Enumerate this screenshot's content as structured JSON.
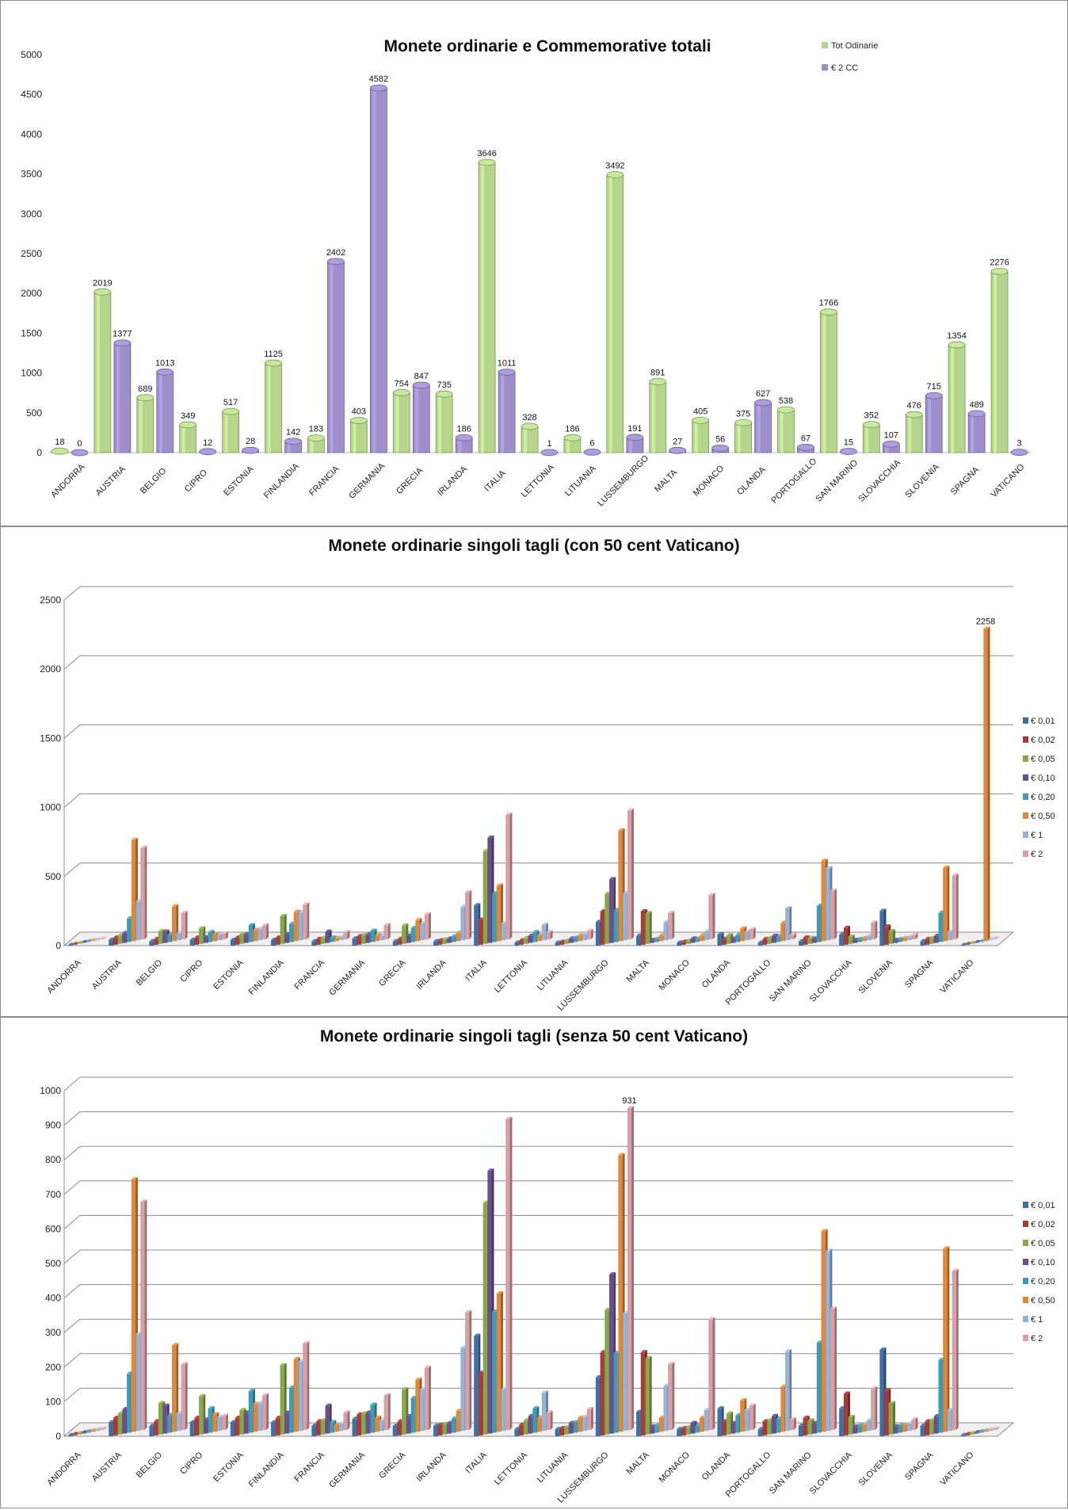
{
  "chart_data": [
    {
      "type": "bar",
      "title": "Monete ordinarie e Commemorative totali",
      "xlabel": "",
      "ylabel": "",
      "ylim": [
        0,
        5000
      ],
      "yticks": [
        0,
        500,
        1000,
        1500,
        2000,
        2500,
        3000,
        3500,
        4000,
        4500,
        5000
      ],
      "grid": false,
      "legend_position": "top-right",
      "categories": [
        "ANDORRA",
        "AUSTRIA",
        "BELGIO",
        "CIPRO",
        "ESTONIA",
        "FINLANDIA",
        "FRANCIA",
        "GERMANIA",
        "GRECIA",
        "IRLANDA",
        "ITALIA",
        "LETTONIA",
        "LITUANIA",
        "LUSSEMBURGO",
        "MALTA",
        "MONACO",
        "OLANDA",
        "PORTOGALLO",
        "SAN MARINO",
        "SLOVACCHIA",
        "SLOVENIA",
        "SPAGNA",
        "VATICANO"
      ],
      "series": [
        {
          "name": "Tot Odinarie",
          "color": "#b5d58c",
          "values": [
            18,
            2019,
            689,
            349,
            517,
            1125,
            183,
            403,
            754,
            735,
            3646,
            328,
            186,
            3492,
            891,
            405,
            375,
            538,
            1766,
            352,
            476,
            1354,
            2276
          ]
        },
        {
          "name": "€ 2 CC",
          "color": "#9e8fca",
          "values": [
            0,
            1377,
            1013,
            12,
            28,
            142,
            2402,
            4582,
            847,
            186,
            1011,
            1,
            6,
            191,
            27,
            56,
            627,
            67,
            15,
            107,
            715,
            489,
            3
          ]
        }
      ]
    },
    {
      "type": "bar",
      "title": "Monete ordinarie singoli tagli (con 50 cent Vaticano)",
      "xlabel": "",
      "ylabel": "",
      "ylim": [
        0,
        2500
      ],
      "yticks": [
        0,
        500,
        1000,
        1500,
        2000,
        2500
      ],
      "grid": true,
      "legend_position": "right",
      "annotation": "2258",
      "categories": [
        "ANDORRA",
        "AUSTRIA",
        "BELGIO",
        "CIPRO",
        "ESTONIA",
        "FINLANDIA",
        "FRANCIA",
        "GERMANIA",
        "GRECIA",
        "IRLANDA",
        "ITALIA",
        "LETTONIA",
        "LITUANIA",
        "LUSSEMBURGO",
        "MALTA",
        "MONACO",
        "OLANDA",
        "PORTOGALLO",
        "SAN MARINO",
        "SLOVACCHIA",
        "SLOVENIA",
        "SPAGNA",
        "VATICANO"
      ],
      "series": [
        {
          "name": "€ 0,01",
          "color": "#3f6fa3",
          "values": [
            3,
            40,
            30,
            40,
            40,
            40,
            30,
            50,
            30,
            30,
            290,
            20,
            20,
            170,
            70,
            20,
            80,
            20,
            30,
            80,
            250,
            30,
            3
          ]
        },
        {
          "name": "€ 0,02",
          "color": "#a53c3a",
          "values": [
            3,
            50,
            40,
            50,
            50,
            50,
            40,
            60,
            40,
            30,
            180,
            30,
            20,
            240,
            240,
            20,
            40,
            40,
            50,
            120,
            130,
            40,
            3
          ]
        },
        {
          "name": "€ 0,05",
          "color": "#88a64a",
          "values": [
            3,
            60,
            90,
            110,
            70,
            200,
            40,
            60,
            130,
            30,
            670,
            40,
            20,
            360,
            220,
            20,
            60,
            40,
            40,
            50,
            90,
            40,
            3
          ]
        },
        {
          "name": "€ 0,10",
          "color": "#6a4f8c",
          "values": [
            3,
            70,
            80,
            40,
            60,
            60,
            80,
            60,
            50,
            30,
            760,
            50,
            30,
            460,
            20,
            30,
            30,
            50,
            30,
            20,
            20,
            50,
            3
          ]
        },
        {
          "name": "€ 0,20",
          "color": "#3e9bb3",
          "values": [
            3,
            170,
            50,
            70,
            120,
            130,
            30,
            80,
            100,
            40,
            350,
            70,
            30,
            230,
            20,
            20,
            50,
            40,
            260,
            20,
            20,
            210,
            3
          ]
        },
        {
          "name": "€ 0,50",
          "color": "#e0873a",
          "values": [
            3,
            730,
            250,
            50,
            80,
            210,
            20,
            40,
            150,
            60,
            400,
            40,
            40,
            800,
            40,
            40,
            90,
            130,
            580,
            20,
            20,
            530,
            2258
          ]
        },
        {
          "name": "€ 1",
          "color": "#95b3d7",
          "values": [
            3,
            280,
            50,
            40,
            80,
            200,
            20,
            30,
            120,
            240,
            120,
            110,
            40,
            340,
            130,
            60,
            60,
            230,
            520,
            30,
            20,
            60,
            3
          ]
        },
        {
          "name": "€ 2",
          "color": "#d7a0a6",
          "values": [
            3,
            660,
            190,
            40,
            100,
            250,
            50,
            100,
            180,
            340,
            900,
            50,
            60,
            931,
            190,
            320,
            70,
            30,
            350,
            120,
            30,
            460,
            3
          ]
        }
      ]
    },
    {
      "type": "bar",
      "title": "Monete ordinarie singoli tagli (senza 50 cent Vaticano)",
      "xlabel": "",
      "ylabel": "",
      "ylim": [
        0,
        1000
      ],
      "yticks": [
        0,
        100,
        200,
        300,
        400,
        500,
        600,
        700,
        800,
        900,
        1000
      ],
      "grid": true,
      "legend_position": "right",
      "annotation": "931",
      "categories": [
        "ANDORRA",
        "AUSTRIA",
        "BELGIO",
        "CIPRO",
        "ESTONIA",
        "FINLANDIA",
        "FRANCIA",
        "GERMANIA",
        "GRECIA",
        "IRLANDA",
        "ITALIA",
        "LETTONIA",
        "LITUANIA",
        "LUSSEMBURGO",
        "MALTA",
        "MONACO",
        "OLANDA",
        "PORTOGALLO",
        "SAN MARINO",
        "SLOVACCHIA",
        "SLOVENIA",
        "SPAGNA",
        "VATICANO"
      ],
      "series": [
        {
          "name": "€ 0,01",
          "color": "#3f6fa3",
          "values": [
            3,
            40,
            30,
            40,
            40,
            40,
            30,
            50,
            30,
            30,
            290,
            20,
            20,
            170,
            70,
            20,
            80,
            20,
            30,
            80,
            250,
            30,
            3
          ]
        },
        {
          "name": "€ 0,02",
          "color": "#a53c3a",
          "values": [
            3,
            50,
            40,
            50,
            50,
            50,
            40,
            60,
            40,
            30,
            180,
            30,
            20,
            240,
            240,
            20,
            40,
            40,
            50,
            120,
            130,
            40,
            3
          ]
        },
        {
          "name": "€ 0,05",
          "color": "#88a64a",
          "values": [
            3,
            60,
            90,
            110,
            70,
            200,
            40,
            60,
            130,
            30,
            670,
            40,
            20,
            360,
            220,
            20,
            60,
            40,
            40,
            50,
            90,
            40,
            3
          ]
        },
        {
          "name": "€ 0,10",
          "color": "#6a4f8c",
          "values": [
            3,
            70,
            80,
            40,
            60,
            60,
            80,
            60,
            50,
            30,
            760,
            50,
            30,
            460,
            20,
            30,
            30,
            50,
            30,
            20,
            20,
            50,
            3
          ]
        },
        {
          "name": "€ 0,20",
          "color": "#3e9bb3",
          "values": [
            3,
            170,
            50,
            70,
            120,
            130,
            30,
            80,
            100,
            40,
            350,
            70,
            30,
            230,
            20,
            20,
            50,
            40,
            260,
            20,
            20,
            210,
            3
          ]
        },
        {
          "name": "€ 0,50",
          "color": "#e0873a",
          "values": [
            3,
            730,
            250,
            50,
            80,
            210,
            20,
            40,
            150,
            60,
            400,
            40,
            40,
            800,
            40,
            40,
            90,
            130,
            580,
            20,
            20,
            530,
            3
          ]
        },
        {
          "name": "€ 1",
          "color": "#95b3d7",
          "values": [
            3,
            280,
            50,
            40,
            80,
            200,
            20,
            30,
            120,
            240,
            120,
            110,
            40,
            340,
            130,
            60,
            60,
            230,
            520,
            30,
            20,
            60,
            3
          ]
        },
        {
          "name": "€ 2",
          "color": "#d7a0a6",
          "values": [
            3,
            660,
            190,
            40,
            100,
            250,
            50,
            100,
            180,
            340,
            900,
            50,
            60,
            931,
            190,
            320,
            70,
            30,
            350,
            120,
            30,
            460,
            3
          ]
        }
      ]
    }
  ]
}
